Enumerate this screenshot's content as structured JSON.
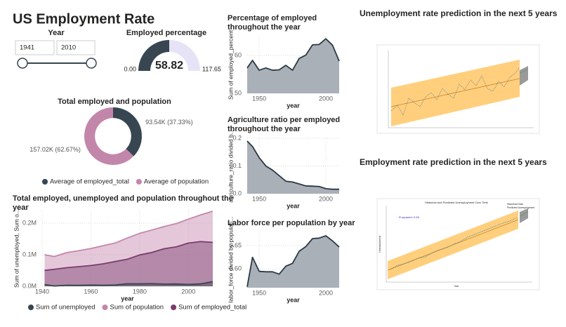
{
  "header": {
    "title": "US Employment Rate"
  },
  "slicer": {
    "label": "Year",
    "range": [
      1941,
      2010
    ]
  },
  "chart_data": [
    {
      "type": "gauge",
      "title": "Employed percentage",
      "value": 58.82,
      "range": [
        {
          "value": 0,
          "label": "0.00"
        },
        117.65
      ],
      "color": "#374650",
      "track_color": "#e6e3f7"
    },
    {
      "type": "pie",
      "title": "Total employed and population",
      "hole": 0.63,
      "categories": [
        "Average of employed_total",
        "Average of population"
      ],
      "values": [
        93540,
        157020
      ],
      "value_labels": [
        "93.54K (37.33%)",
        "157.02K (62.67%)"
      ],
      "colors": [
        "#374650",
        "#c386ab"
      ],
      "legend": "bottom"
    },
    {
      "type": "area",
      "title": "Total employed, unemployed and population throughout the year",
      "xlabel": "year",
      "ylabel": "Sum of unemployed, Sum o...",
      "x": [
        1941,
        1945,
        1950,
        1955,
        1960,
        1965,
        1970,
        1975,
        1980,
        1985,
        1990,
        1995,
        2000,
        2005,
        2010
      ],
      "series": [
        {
          "name": "Sum of unemployed",
          "color": "#37474f",
          "values": [
            5600,
            1000,
            3300,
            2900,
            3900,
            3400,
            4100,
            7900,
            7600,
            8300,
            7000,
            7400,
            5700,
            7600,
            14800
          ]
        },
        {
          "name": "Sum of population",
          "color": "#c386ab",
          "values": [
            99900,
            94100,
            106600,
            112700,
            119800,
            128500,
            137100,
            153200,
            167700,
            178200,
            189200,
            198600,
            212600,
            226100,
            237800
          ]
        },
        {
          "name": "Sum of employed_total",
          "color": "#7b3b6e",
          "values": [
            50400,
            53900,
            58900,
            62200,
            65800,
            71100,
            78700,
            85800,
            99300,
            107200,
            118800,
            124900,
            136900,
            141700,
            139100
          ]
        }
      ],
      "xlim": [
        1940,
        2010
      ],
      "xticks": [
        1940,
        1960,
        1980,
        2000
      ],
      "ylim": [
        0,
        240000
      ],
      "yticks": [
        {
          "value": 0,
          "label": "0.0M"
        },
        {
          "value": 100000,
          "label": "0.1M"
        },
        {
          "value": 200000,
          "label": "0.2M"
        }
      ],
      "grid": true,
      "legend": "bottom"
    },
    {
      "type": "area",
      "title": "Percentage of employed throughout the year",
      "xlabel": "year",
      "ylabel": "Sum of employed_percent",
      "x": [
        1941,
        1945,
        1950,
        1955,
        1960,
        1965,
        1970,
        1975,
        1980,
        1985,
        1990,
        1995,
        2000,
        2005,
        2010
      ],
      "values": [
        56.7,
        58.7,
        56.1,
        56.7,
        56.1,
        56.2,
        57.4,
        56.1,
        59.2,
        60.1,
        62.8,
        62.9,
        64.4,
        62.7,
        58.5
      ],
      "color": "#2b3944",
      "fill": "#a9b0b7",
      "xlim": [
        1941,
        2010
      ],
      "xticks": [
        1950,
        2000
      ],
      "ylim": [
        50,
        65
      ],
      "yticks": [
        50,
        60
      ],
      "grid": true
    },
    {
      "type": "area",
      "title": "Agriculture ratio per employed throughout the year",
      "xlabel": "year",
      "ylabel": "agriculture_ratio divided b...",
      "x": [
        1941,
        1945,
        1950,
        1955,
        1960,
        1965,
        1970,
        1975,
        1980,
        1985,
        1990,
        1995,
        2000,
        2005,
        2010
      ],
      "values": [
        0.19,
        0.17,
        0.13,
        0.1,
        0.085,
        0.065,
        0.045,
        0.042,
        0.035,
        0.028,
        0.027,
        0.026,
        0.018,
        0.016,
        0.016
      ],
      "color": "#2b3944",
      "fill": "#a9b0b7",
      "xlim": [
        1941,
        2010
      ],
      "xticks": [
        1950,
        2000
      ],
      "ylim": [
        0,
        0.2
      ],
      "yticks": [
        {
          "value": 0,
          "label": "0.0"
        },
        0.1,
        0.2
      ],
      "grid": true
    },
    {
      "type": "area",
      "title": "Labor force per population by year",
      "xlabel": "year",
      "ylabel": "labor_force divided by populati...",
      "x": [
        1941,
        1945,
        1950,
        1955,
        1960,
        1965,
        1970,
        1975,
        1980,
        1985,
        1990,
        1995,
        2000,
        2005,
        2010
      ],
      "values": [
        0.562,
        0.625,
        0.595,
        0.594,
        0.594,
        0.589,
        0.606,
        0.612,
        0.638,
        0.648,
        0.665,
        0.666,
        0.671,
        0.66,
        0.647
      ],
      "color": "#2b3944",
      "fill": "#a9b0b7",
      "xlim": [
        1941,
        2010
      ],
      "xticks": [
        1950,
        2000
      ],
      "ylim": [
        0.56,
        0.68
      ],
      "yticks": [
        {
          "value": 0.6,
          "label": "0.60"
        },
        {
          "value": 0.65,
          "label": "0.65"
        }
      ],
      "grid": true
    }
  ],
  "images": [
    {
      "title": "Unemployment rate prediction in the next 5 years"
    },
    {
      "title": "Employment rate prediction in the next 5 years",
      "inner_title": "Historical and Predicted Unemployment Over Time",
      "annotation": "R-squared: 0.98",
      "legend": [
        "Historical Data",
        "Predicted Unemployment"
      ],
      "xlabel": "Year",
      "ylabel": "Unemployment"
    }
  ]
}
